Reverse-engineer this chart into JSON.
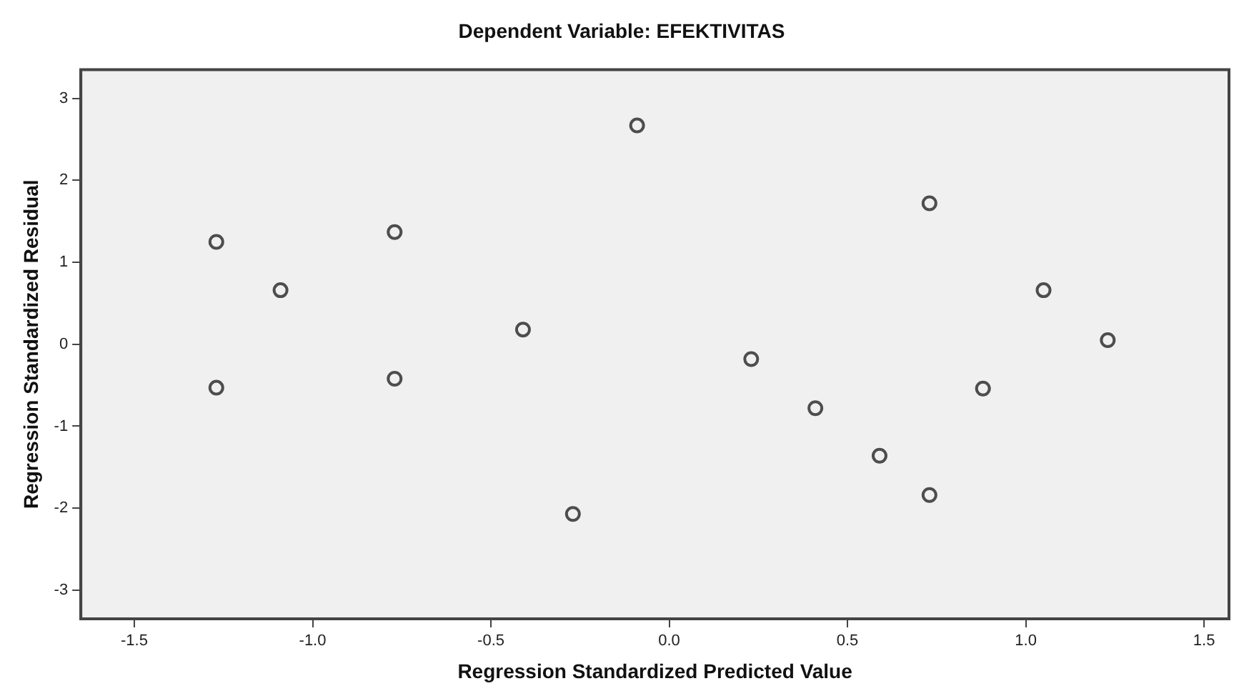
{
  "chart_data": {
    "type": "scatter",
    "title": "Dependent Variable: EFEKTIVITAS",
    "xlabel": "Regression Standardized Predicted Value",
    "ylabel": "Regression Standardized Residual",
    "x": [
      -1.27,
      -1.27,
      -1.09,
      -0.77,
      -0.77,
      -0.41,
      -0.27,
      -0.09,
      0.23,
      0.41,
      0.59,
      0.73,
      0.73,
      0.88,
      1.05,
      1.23
    ],
    "series": [
      {
        "color": "#4d4d4d",
        "values": [
          1.25,
          -0.53,
          0.66,
          1.37,
          -0.42,
          0.18,
          -2.07,
          2.67,
          -0.18,
          -0.78,
          -1.36,
          -1.84,
          1.72,
          -0.54,
          0.66,
          0.05
        ]
      }
    ],
    "xlim": [
      -1.65,
      1.57
    ],
    "ylim": [
      -3.35,
      3.35
    ],
    "xticks": [
      -1.5,
      {
        "value": -1,
        "label": "-1.0"
      },
      -0.5,
      {
        "value": 0,
        "label": "0.0"
      },
      0.5,
      {
        "value": 1,
        "label": "1.0"
      },
      1.5
    ],
    "yticks": [
      -3,
      -2,
      -1,
      0,
      1,
      2,
      3
    ],
    "marker": "circle",
    "legend": false
  }
}
